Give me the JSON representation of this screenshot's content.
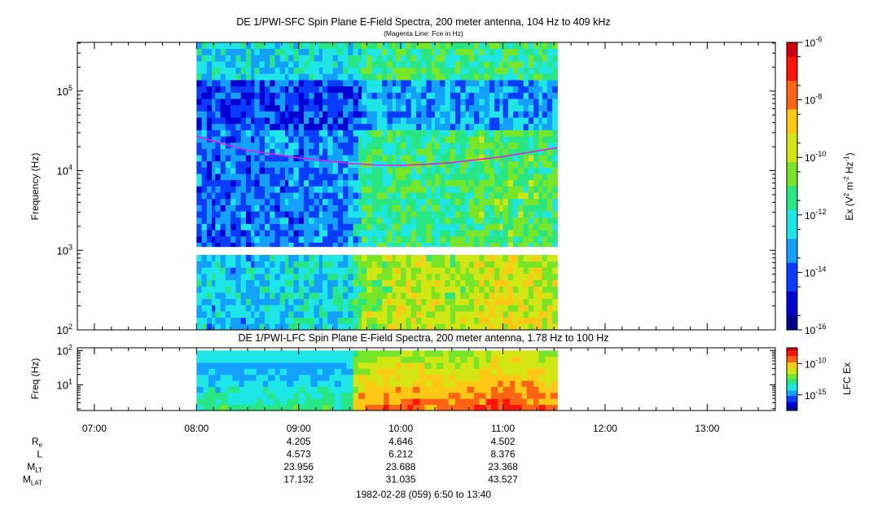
{
  "colors": {
    "cmap": [
      "#00008c",
      "#0000d2",
      "#0a3cff",
      "#14a0ff",
      "#1ee6e6",
      "#28e682",
      "#78e628",
      "#d2e614",
      "#ffc814",
      "#ff6414",
      "#ff140a",
      "#d2000a"
    ],
    "spec_bg": "#1028d0",
    "fce_line": "#e020e0"
  },
  "chart_data": [
    {
      "type": "heatmap",
      "name": "sfc",
      "title": "DE 1/PWI-SFC  Spin Plane E-Field Spectra, 200 meter antenna, 104 Hz to 409 kHz",
      "subtitle": "(Magenta Line: Fce in Hz)",
      "ylabel": "Frequency (Hz)",
      "y_scale": "log",
      "ylim": [
        100,
        409000
      ],
      "yticks": [
        {
          "value": 100,
          "base": "10",
          "exp": "2"
        },
        {
          "value": 1000,
          "base": "10",
          "exp": "3"
        },
        {
          "value": 10000,
          "base": "10",
          "exp": "4"
        },
        {
          "value": 100000,
          "base": "10",
          "exp": "5"
        }
      ],
      "x_range": [
        "06:50",
        "13:40"
      ],
      "data_start": "08:00",
      "data_end": "11:32",
      "gap_hz": [
        900,
        1100
      ],
      "fce_line": {
        "time": [
          "08:00",
          "08:30",
          "09:00",
          "09:30",
          "09:45",
          "10:00",
          "10:15",
          "10:30",
          "11:00",
          "11:32"
        ],
        "hz": [
          27000,
          18000,
          14500,
          12300,
          11800,
          11700,
          12000,
          12600,
          15000,
          19500
        ]
      },
      "intensity_time": [
        "08:00",
        "08:30",
        "09:00",
        "09:30",
        "09:40",
        "10:00",
        "10:30",
        "11:00",
        "11:32"
      ],
      "intensity_level": [
        0.3,
        0.3,
        0.32,
        0.35,
        0.6,
        0.62,
        0.6,
        0.68,
        0.62
      ],
      "colorbar": {
        "label_base": "Ex (V",
        "label_sup1": "2",
        "label_mid": " m",
        "label_sup2": "-2",
        "label_mid2": " Hz",
        "label_sup3": "-1",
        "label_end": ")",
        "range": [
          1e-16,
          1e-06
        ],
        "scale": "log",
        "ticks": [
          {
            "value": 1e-06,
            "base": "10",
            "exp": "-6"
          },
          {
            "value": 1e-08,
            "base": "10",
            "exp": "-8"
          },
          {
            "value": 1e-10,
            "base": "10",
            "exp": "-10"
          },
          {
            "value": 1e-12,
            "base": "10",
            "exp": "-12"
          },
          {
            "value": 1e-14,
            "base": "10",
            "exp": "-14"
          },
          {
            "value": 1e-16,
            "base": "10",
            "exp": "-16"
          }
        ]
      }
    },
    {
      "type": "heatmap",
      "name": "lfc",
      "title": "DE 1/PWI-LFC  Spin Plane E-Field Spectra, 200 meter antenna, 1.78 Hz to 100 Hz",
      "ylabel": "Freq (Hz)",
      "y_scale": "log",
      "ylim": [
        1.78,
        120
      ],
      "yticks": [
        {
          "value": 10,
          "base": "10",
          "exp": "1"
        },
        {
          "value": 100,
          "base": "10",
          "exp": "2"
        }
      ],
      "data_start": "08:00",
      "data_end": "11:32",
      "intensity_time": [
        "08:00",
        "09:00",
        "09:30",
        "09:35",
        "10:00",
        "10:30",
        "11:00",
        "11:32"
      ],
      "intensity_level": [
        0.45,
        0.45,
        0.47,
        0.78,
        0.85,
        0.8,
        0.88,
        0.82
      ],
      "colorbar": {
        "label": "LFC Ex",
        "ticks": [
          {
            "frac": 0.25,
            "base": "10",
            "exp": "-10"
          },
          {
            "frac": 0.75,
            "base": "10",
            "exp": "-15"
          }
        ]
      }
    }
  ],
  "time_axis": {
    "start": "06:50",
    "end": "13:40",
    "labels": [
      "07:00",
      "08:00",
      "09:00",
      "10:00",
      "11:00",
      "12:00",
      "13:00"
    ],
    "minor_step_min": 10
  },
  "ephemeris": {
    "rows": [
      {
        "name": "R",
        "sub": "e",
        "values": [
          "4.205",
          "4.646",
          "4.502"
        ]
      },
      {
        "name": "L",
        "sub": "",
        "values": [
          "4.573",
          "6.212",
          "8.376"
        ]
      },
      {
        "name": "M",
        "sub": "LT",
        "values": [
          "23.956",
          "23.688",
          "23.368"
        ]
      },
      {
        "name": "M",
        "sub": "LAT",
        "values": [
          "17.132",
          "31.035",
          "43.527"
        ]
      }
    ],
    "times": [
      "09:00",
      "10:00",
      "11:00"
    ]
  },
  "footer": "1982-02-28 (059) 6:50 to 13:40"
}
